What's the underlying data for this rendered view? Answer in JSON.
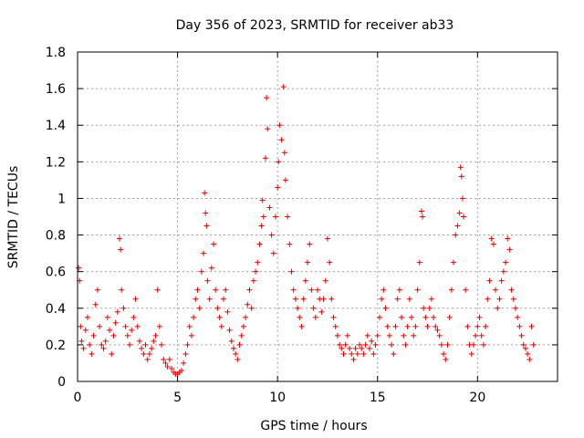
{
  "chart_data": {
    "type": "scatter",
    "title": "Day 356 of 2023, SRMTID for receiver ab33",
    "xlabel": "GPS time / hours",
    "ylabel": "SRMTID / TECUs",
    "xlim": [
      0,
      24
    ],
    "ylim": [
      0,
      1.8
    ],
    "xticks": [
      0,
      5,
      10,
      15,
      20
    ],
    "yticks": [
      0,
      0.2,
      0.4,
      0.6,
      0.8,
      1,
      1.2,
      1.4,
      1.6,
      1.8
    ],
    "xtick_labels": [
      "0",
      "5",
      "10",
      "15",
      "20"
    ],
    "ytick_labels": [
      "0",
      "0.2",
      "0.4",
      "0.6",
      "0.8",
      "1",
      "1.2",
      "1.4",
      "1.6",
      "1.8"
    ],
    "grid": true,
    "marker": "plus",
    "color": "#e00000",
    "series": [
      {
        "name": "SRMTID",
        "points": [
          [
            0.05,
            0.62
          ],
          [
            0.1,
            0.55
          ],
          [
            0.15,
            0.3
          ],
          [
            0.2,
            0.22
          ],
          [
            0.3,
            0.18
          ],
          [
            0.4,
            0.28
          ],
          [
            0.5,
            0.35
          ],
          [
            0.6,
            0.2
          ],
          [
            0.7,
            0.15
          ],
          [
            0.8,
            0.25
          ],
          [
            0.9,
            0.42
          ],
          [
            1.0,
            0.5
          ],
          [
            1.1,
            0.3
          ],
          [
            1.2,
            0.2
          ],
          [
            1.3,
            0.18
          ],
          [
            1.4,
            0.22
          ],
          [
            1.5,
            0.35
          ],
          [
            1.6,
            0.28
          ],
          [
            1.7,
            0.15
          ],
          [
            1.8,
            0.25
          ],
          [
            1.9,
            0.32
          ],
          [
            2.0,
            0.38
          ],
          [
            2.1,
            0.78
          ],
          [
            2.15,
            0.72
          ],
          [
            2.2,
            0.5
          ],
          [
            2.3,
            0.4
          ],
          [
            2.4,
            0.3
          ],
          [
            2.5,
            0.25
          ],
          [
            2.6,
            0.2
          ],
          [
            2.7,
            0.28
          ],
          [
            2.8,
            0.35
          ],
          [
            2.9,
            0.45
          ],
          [
            3.0,
            0.3
          ],
          [
            3.1,
            0.22
          ],
          [
            3.2,
            0.18
          ],
          [
            3.3,
            0.15
          ],
          [
            3.4,
            0.2
          ],
          [
            3.5,
            0.12
          ],
          [
            3.6,
            0.15
          ],
          [
            3.7,
            0.18
          ],
          [
            3.8,
            0.22
          ],
          [
            3.9,
            0.25
          ],
          [
            4.0,
            0.5
          ],
          [
            4.1,
            0.3
          ],
          [
            4.2,
            0.2
          ],
          [
            4.3,
            0.12
          ],
          [
            4.4,
            0.1
          ],
          [
            4.5,
            0.08
          ],
          [
            4.6,
            0.12
          ],
          [
            4.7,
            0.07
          ],
          [
            4.8,
            0.05
          ],
          [
            4.9,
            0.04
          ],
          [
            5.0,
            0.04
          ],
          [
            5.1,
            0.05
          ],
          [
            5.2,
            0.06
          ],
          [
            5.3,
            0.1
          ],
          [
            5.4,
            0.15
          ],
          [
            5.5,
            0.2
          ],
          [
            5.6,
            0.3
          ],
          [
            5.7,
            0.25
          ],
          [
            5.8,
            0.35
          ],
          [
            5.9,
            0.45
          ],
          [
            6.0,
            0.5
          ],
          [
            6.1,
            0.4
          ],
          [
            6.2,
            0.6
          ],
          [
            6.3,
            0.7
          ],
          [
            6.35,
            1.03
          ],
          [
            6.4,
            0.92
          ],
          [
            6.45,
            0.85
          ],
          [
            6.5,
            0.55
          ],
          [
            6.6,
            0.45
          ],
          [
            6.7,
            0.62
          ],
          [
            6.8,
            0.75
          ],
          [
            6.9,
            0.5
          ],
          [
            7.0,
            0.4
          ],
          [
            7.1,
            0.35
          ],
          [
            7.2,
            0.3
          ],
          [
            7.3,
            0.45
          ],
          [
            7.4,
            0.5
          ],
          [
            7.5,
            0.38
          ],
          [
            7.6,
            0.28
          ],
          [
            7.7,
            0.22
          ],
          [
            7.8,
            0.18
          ],
          [
            7.9,
            0.15
          ],
          [
            8.0,
            0.12
          ],
          [
            8.1,
            0.2
          ],
          [
            8.2,
            0.25
          ],
          [
            8.3,
            0.3
          ],
          [
            8.4,
            0.35
          ],
          [
            8.5,
            0.42
          ],
          [
            8.6,
            0.5
          ],
          [
            8.7,
            0.4
          ],
          [
            8.8,
            0.55
          ],
          [
            8.9,
            0.6
          ],
          [
            9.0,
            0.65
          ],
          [
            9.1,
            0.75
          ],
          [
            9.2,
            0.85
          ],
          [
            9.25,
            0.99
          ],
          [
            9.3,
            0.9
          ],
          [
            9.4,
            1.22
          ],
          [
            9.45,
            1.55
          ],
          [
            9.5,
            1.38
          ],
          [
            9.6,
            0.95
          ],
          [
            9.7,
            0.8
          ],
          [
            9.8,
            0.7
          ],
          [
            9.9,
            0.9
          ],
          [
            10.0,
            1.06
          ],
          [
            10.05,
            1.2
          ],
          [
            10.1,
            1.4
          ],
          [
            10.2,
            1.32
          ],
          [
            10.3,
            1.61
          ],
          [
            10.35,
            1.25
          ],
          [
            10.4,
            1.1
          ],
          [
            10.5,
            0.9
          ],
          [
            10.6,
            0.75
          ],
          [
            10.7,
            0.6
          ],
          [
            10.8,
            0.5
          ],
          [
            10.9,
            0.45
          ],
          [
            11.0,
            0.4
          ],
          [
            11.1,
            0.35
          ],
          [
            11.2,
            0.3
          ],
          [
            11.3,
            0.45
          ],
          [
            11.4,
            0.55
          ],
          [
            11.5,
            0.65
          ],
          [
            11.6,
            0.75
          ],
          [
            11.7,
            0.5
          ],
          [
            11.8,
            0.4
          ],
          [
            11.9,
            0.35
          ],
          [
            12.0,
            0.5
          ],
          [
            12.1,
            0.45
          ],
          [
            12.2,
            0.38
          ],
          [
            12.3,
            0.45
          ],
          [
            12.4,
            0.55
          ],
          [
            12.5,
            0.78
          ],
          [
            12.6,
            0.65
          ],
          [
            12.7,
            0.45
          ],
          [
            12.8,
            0.35
          ],
          [
            12.9,
            0.3
          ],
          [
            13.0,
            0.25
          ],
          [
            13.1,
            0.2
          ],
          [
            13.2,
            0.18
          ],
          [
            13.3,
            0.15
          ],
          [
            13.4,
            0.2
          ],
          [
            13.5,
            0.25
          ],
          [
            13.6,
            0.18
          ],
          [
            13.7,
            0.15
          ],
          [
            13.8,
            0.12
          ],
          [
            13.9,
            0.18
          ],
          [
            14.0,
            0.15
          ],
          [
            14.1,
            0.2
          ],
          [
            14.2,
            0.18
          ],
          [
            14.3,
            0.15
          ],
          [
            14.4,
            0.2
          ],
          [
            14.5,
            0.25
          ],
          [
            14.6,
            0.18
          ],
          [
            14.7,
            0.22
          ],
          [
            14.8,
            0.15
          ],
          [
            14.9,
            0.2
          ],
          [
            15.0,
            0.25
          ],
          [
            15.1,
            0.35
          ],
          [
            15.2,
            0.45
          ],
          [
            15.3,
            0.5
          ],
          [
            15.4,
            0.4
          ],
          [
            15.5,
            0.3
          ],
          [
            15.6,
            0.25
          ],
          [
            15.7,
            0.2
          ],
          [
            15.8,
            0.15
          ],
          [
            15.9,
            0.3
          ],
          [
            16.0,
            0.45
          ],
          [
            16.1,
            0.5
          ],
          [
            16.2,
            0.35
          ],
          [
            16.3,
            0.25
          ],
          [
            16.4,
            0.2
          ],
          [
            16.5,
            0.3
          ],
          [
            16.6,
            0.45
          ],
          [
            16.7,
            0.35
          ],
          [
            16.8,
            0.25
          ],
          [
            16.9,
            0.3
          ],
          [
            17.0,
            0.5
          ],
          [
            17.1,
            0.65
          ],
          [
            17.2,
            0.93
          ],
          [
            17.25,
            0.9
          ],
          [
            17.3,
            0.4
          ],
          [
            17.4,
            0.35
          ],
          [
            17.5,
            0.3
          ],
          [
            17.6,
            0.4
          ],
          [
            17.7,
            0.45
          ],
          [
            17.8,
            0.35
          ],
          [
            17.9,
            0.3
          ],
          [
            18.0,
            0.28
          ],
          [
            18.1,
            0.25
          ],
          [
            18.2,
            0.2
          ],
          [
            18.3,
            0.15
          ],
          [
            18.4,
            0.12
          ],
          [
            18.5,
            0.2
          ],
          [
            18.6,
            0.35
          ],
          [
            18.7,
            0.5
          ],
          [
            18.8,
            0.65
          ],
          [
            18.9,
            0.8
          ],
          [
            19.0,
            0.85
          ],
          [
            19.1,
            0.92
          ],
          [
            19.15,
            1.17
          ],
          [
            19.2,
            1.12
          ],
          [
            19.25,
            1.0
          ],
          [
            19.3,
            0.9
          ],
          [
            19.4,
            0.5
          ],
          [
            19.5,
            0.3
          ],
          [
            19.6,
            0.2
          ],
          [
            19.7,
            0.15
          ],
          [
            19.8,
            0.2
          ],
          [
            19.9,
            0.25
          ],
          [
            20.0,
            0.3
          ],
          [
            20.1,
            0.35
          ],
          [
            20.2,
            0.25
          ],
          [
            20.3,
            0.2
          ],
          [
            20.4,
            0.3
          ],
          [
            20.5,
            0.45
          ],
          [
            20.6,
            0.55
          ],
          [
            20.7,
            0.78
          ],
          [
            20.8,
            0.75
          ],
          [
            20.9,
            0.5
          ],
          [
            21.0,
            0.4
          ],
          [
            21.1,
            0.45
          ],
          [
            21.2,
            0.55
          ],
          [
            21.3,
            0.6
          ],
          [
            21.4,
            0.65
          ],
          [
            21.5,
            0.78
          ],
          [
            21.6,
            0.72
          ],
          [
            21.7,
            0.5
          ],
          [
            21.8,
            0.45
          ],
          [
            21.9,
            0.4
          ],
          [
            22.0,
            0.35
          ],
          [
            22.1,
            0.3
          ],
          [
            22.2,
            0.25
          ],
          [
            22.3,
            0.2
          ],
          [
            22.4,
            0.18
          ],
          [
            22.5,
            0.15
          ],
          [
            22.6,
            0.12
          ],
          [
            22.7,
            0.3
          ],
          [
            22.8,
            0.2
          ]
        ]
      }
    ]
  }
}
